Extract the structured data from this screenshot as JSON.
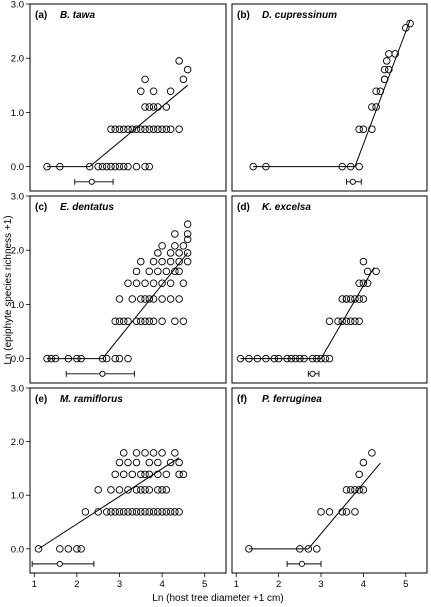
{
  "figure": {
    "ylabel": "Ln (epiphyte species richness +1)",
    "xlabel": "Ln (host tree diameter +1 cm)"
  },
  "chart_data": [
    {
      "type": "scatter",
      "tag": "(a)",
      "species": "B. tawa",
      "xlim": [
        0.9,
        5.5
      ],
      "ylim": [
        -0.45,
        3.0
      ],
      "y_ticks": [
        "0.0",
        "1.0",
        "2.0",
        "3.0"
      ],
      "x_ticks": [],
      "points": [
        [
          1.3,
          0
        ],
        [
          1.6,
          0
        ],
        [
          2.3,
          0
        ],
        [
          2.5,
          0
        ],
        [
          2.6,
          0
        ],
        [
          2.7,
          0
        ],
        [
          2.8,
          0
        ],
        [
          2.9,
          0
        ],
        [
          3.0,
          0
        ],
        [
          3.1,
          0
        ],
        [
          3.2,
          0
        ],
        [
          3.4,
          0
        ],
        [
          3.6,
          0
        ],
        [
          3.7,
          0
        ],
        [
          2.8,
          0.69
        ],
        [
          2.9,
          0.69
        ],
        [
          3.0,
          0.69
        ],
        [
          3.1,
          0.69
        ],
        [
          3.2,
          0.69
        ],
        [
          3.3,
          0.69
        ],
        [
          3.4,
          0.69
        ],
        [
          3.5,
          0.69
        ],
        [
          3.6,
          0.69
        ],
        [
          3.7,
          0.69
        ],
        [
          3.8,
          0.69
        ],
        [
          3.9,
          0.69
        ],
        [
          4.0,
          0.69
        ],
        [
          4.1,
          0.69
        ],
        [
          4.2,
          0.69
        ],
        [
          4.4,
          0.69
        ],
        [
          3.6,
          1.1
        ],
        [
          3.7,
          1.1
        ],
        [
          3.8,
          1.1
        ],
        [
          3.9,
          1.1
        ],
        [
          4.1,
          1.1
        ],
        [
          3.5,
          1.39
        ],
        [
          3.8,
          1.39
        ],
        [
          4.2,
          1.39
        ],
        [
          3.6,
          1.61
        ],
        [
          4.5,
          1.61
        ],
        [
          4.6,
          1.79
        ],
        [
          4.4,
          1.95
        ]
      ],
      "fit": [
        [
          2.3,
          0
        ],
        [
          4.6,
          1.5
        ]
      ],
      "breakpoint": {
        "x": 2.35,
        "lo": 1.95,
        "hi": 2.85
      }
    },
    {
      "type": "scatter",
      "tag": "(b)",
      "species": "D. cupressinum",
      "xlim": [
        0.9,
        5.5
      ],
      "ylim": [
        -0.45,
        3.0
      ],
      "y_ticks": [],
      "x_ticks": [],
      "points": [
        [
          1.4,
          0
        ],
        [
          1.7,
          0
        ],
        [
          3.5,
          0
        ],
        [
          3.7,
          0
        ],
        [
          3.9,
          0
        ],
        [
          3.9,
          0.69
        ],
        [
          4.0,
          0.69
        ],
        [
          4.2,
          0.69
        ],
        [
          4.2,
          1.1
        ],
        [
          4.3,
          1.1
        ],
        [
          4.3,
          1.39
        ],
        [
          4.4,
          1.39
        ],
        [
          4.5,
          1.61
        ],
        [
          4.5,
          1.79
        ],
        [
          4.55,
          1.95
        ],
        [
          4.6,
          1.79
        ],
        [
          4.6,
          2.08
        ],
        [
          4.75,
          2.08
        ],
        [
          4.5,
          1.61
        ],
        [
          5.0,
          2.56
        ],
        [
          5.1,
          2.64
        ]
      ],
      "fit": [
        [
          3.8,
          0
        ],
        [
          5.1,
          2.7
        ]
      ],
      "breakpoint": {
        "x": 3.75,
        "lo": 3.6,
        "hi": 3.95
      }
    },
    {
      "type": "scatter",
      "tag": "(c)",
      "species": "E. dentatus",
      "xlim": [
        0.9,
        5.5
      ],
      "ylim": [
        -0.45,
        3.0
      ],
      "y_ticks": [
        "0.0",
        "1.0",
        "2.0",
        "3.0"
      ],
      "x_ticks": [],
      "points": [
        [
          1.3,
          0
        ],
        [
          1.4,
          0
        ],
        [
          1.5,
          0
        ],
        [
          1.8,
          0
        ],
        [
          2.0,
          0
        ],
        [
          2.1,
          0
        ],
        [
          2.6,
          0
        ],
        [
          2.7,
          0
        ],
        [
          2.9,
          0
        ],
        [
          3.0,
          0
        ],
        [
          3.2,
          0
        ],
        [
          2.9,
          0.69
        ],
        [
          3.0,
          0.69
        ],
        [
          3.1,
          0.69
        ],
        [
          3.2,
          0.69
        ],
        [
          3.4,
          0.69
        ],
        [
          3.5,
          0.69
        ],
        [
          3.6,
          0.69
        ],
        [
          3.7,
          0.69
        ],
        [
          3.8,
          0.69
        ],
        [
          4.0,
          0.69
        ],
        [
          4.3,
          0.69
        ],
        [
          4.5,
          0.69
        ],
        [
          3.0,
          1.1
        ],
        [
          3.3,
          1.1
        ],
        [
          3.5,
          1.1
        ],
        [
          3.6,
          1.1
        ],
        [
          3.7,
          1.1
        ],
        [
          3.8,
          1.1
        ],
        [
          4.0,
          1.1
        ],
        [
          4.2,
          1.1
        ],
        [
          4.4,
          1.1
        ],
        [
          3.2,
          1.39
        ],
        [
          3.4,
          1.39
        ],
        [
          3.6,
          1.39
        ],
        [
          3.8,
          1.39
        ],
        [
          4.0,
          1.39
        ],
        [
          4.2,
          1.39
        ],
        [
          4.5,
          1.39
        ],
        [
          3.4,
          1.61
        ],
        [
          3.7,
          1.61
        ],
        [
          3.9,
          1.61
        ],
        [
          4.1,
          1.61
        ],
        [
          4.3,
          1.61
        ],
        [
          4.4,
          1.61
        ],
        [
          3.5,
          1.79
        ],
        [
          3.8,
          1.79
        ],
        [
          4.0,
          1.79
        ],
        [
          4.2,
          1.79
        ],
        [
          4.4,
          1.79
        ],
        [
          4.6,
          1.79
        ],
        [
          3.9,
          1.95
        ],
        [
          4.2,
          1.95
        ],
        [
          4.4,
          1.95
        ],
        [
          4.6,
          1.95
        ],
        [
          4.0,
          2.08
        ],
        [
          4.3,
          2.08
        ],
        [
          4.5,
          2.08
        ],
        [
          4.6,
          2.2
        ],
        [
          4.3,
          2.3
        ],
        [
          4.6,
          2.3
        ],
        [
          4.6,
          2.48
        ]
      ],
      "fit": [
        [
          2.6,
          0
        ],
        [
          4.6,
          1.95
        ]
      ],
      "breakpoint": {
        "x": 2.6,
        "lo": 1.75,
        "hi": 3.35
      }
    },
    {
      "type": "scatter",
      "tag": "(d)",
      "species": "K. excelsa",
      "xlim": [
        0.9,
        5.5
      ],
      "ylim": [
        -0.45,
        3.0
      ],
      "y_ticks": [],
      "x_ticks": [],
      "points": [
        [
          1.1,
          0
        ],
        [
          1.3,
          0
        ],
        [
          1.5,
          0
        ],
        [
          1.7,
          0
        ],
        [
          1.9,
          0
        ],
        [
          2.0,
          0
        ],
        [
          2.2,
          0
        ],
        [
          2.4,
          0
        ],
        [
          2.5,
          0
        ],
        [
          2.6,
          0
        ],
        [
          2.8,
          0
        ],
        [
          2.9,
          0
        ],
        [
          3.0,
          0
        ],
        [
          3.1,
          0
        ],
        [
          3.2,
          0
        ],
        [
          2.3,
          0
        ],
        [
          3.2,
          0.69
        ],
        [
          3.4,
          0.69
        ],
        [
          3.5,
          0.69
        ],
        [
          3.6,
          0.69
        ],
        [
          3.7,
          0.69
        ],
        [
          3.8,
          0.69
        ],
        [
          3.9,
          0.69
        ],
        [
          3.5,
          1.1
        ],
        [
          3.6,
          1.1
        ],
        [
          3.7,
          1.1
        ],
        [
          3.8,
          1.1
        ],
        [
          3.9,
          1.1
        ],
        [
          4.0,
          1.1
        ],
        [
          3.6,
          1.1
        ],
        [
          3.9,
          1.39
        ],
        [
          4.0,
          1.39
        ],
        [
          4.1,
          1.39
        ],
        [
          4.1,
          1.61
        ],
        [
          4.3,
          1.61
        ],
        [
          4.0,
          1.79
        ]
      ],
      "fit": [
        [
          3.0,
          0
        ],
        [
          4.25,
          1.68
        ]
      ],
      "breakpoint": {
        "x": 2.8,
        "lo": 2.7,
        "hi": 2.95
      }
    },
    {
      "type": "scatter",
      "tag": "(e)",
      "species": "M. ramiflorus",
      "xlim": [
        0.9,
        5.5
      ],
      "ylim": [
        -0.45,
        3.0
      ],
      "y_ticks": [
        "0.0",
        "1.0",
        "2.0",
        "3.0"
      ],
      "x_ticks": [
        "1",
        "2",
        "3",
        "4",
        "5"
      ],
      "points": [
        [
          1.1,
          0
        ],
        [
          1.6,
          0
        ],
        [
          1.8,
          0
        ],
        [
          2.0,
          0
        ],
        [
          2.1,
          0
        ],
        [
          2.2,
          0.69
        ],
        [
          2.5,
          0.69
        ],
        [
          2.7,
          0.69
        ],
        [
          2.8,
          0.69
        ],
        [
          2.9,
          0.69
        ],
        [
          3.0,
          0.69
        ],
        [
          3.1,
          0.69
        ],
        [
          3.2,
          0.69
        ],
        [
          3.3,
          0.69
        ],
        [
          3.4,
          0.69
        ],
        [
          3.5,
          0.69
        ],
        [
          3.6,
          0.69
        ],
        [
          3.7,
          0.69
        ],
        [
          3.8,
          0.69
        ],
        [
          3.9,
          0.69
        ],
        [
          4.0,
          0.69
        ],
        [
          4.1,
          0.69
        ],
        [
          4.2,
          0.69
        ],
        [
          4.3,
          0.69
        ],
        [
          4.4,
          0.69
        ],
        [
          2.5,
          1.1
        ],
        [
          2.8,
          1.1
        ],
        [
          3.0,
          1.1
        ],
        [
          3.2,
          1.1
        ],
        [
          3.4,
          1.1
        ],
        [
          3.5,
          1.1
        ],
        [
          3.6,
          1.1
        ],
        [
          3.7,
          1.1
        ],
        [
          3.9,
          1.1
        ],
        [
          4.0,
          1.1
        ],
        [
          4.1,
          1.1
        ],
        [
          2.9,
          1.39
        ],
        [
          3.1,
          1.39
        ],
        [
          3.3,
          1.39
        ],
        [
          3.5,
          1.39
        ],
        [
          3.6,
          1.39
        ],
        [
          3.7,
          1.39
        ],
        [
          3.9,
          1.39
        ],
        [
          4.1,
          1.39
        ],
        [
          4.4,
          1.39
        ],
        [
          4.5,
          1.39
        ],
        [
          3.0,
          1.61
        ],
        [
          3.2,
          1.61
        ],
        [
          3.4,
          1.61
        ],
        [
          3.7,
          1.61
        ],
        [
          3.9,
          1.61
        ],
        [
          4.2,
          1.61
        ],
        [
          4.4,
          1.61
        ],
        [
          3.1,
          1.79
        ],
        [
          3.4,
          1.79
        ],
        [
          3.6,
          1.79
        ],
        [
          3.8,
          1.79
        ],
        [
          4.0,
          1.79
        ],
        [
          4.3,
          1.79
        ]
      ],
      "fit": [
        [
          1.1,
          0
        ],
        [
          4.4,
          1.7
        ]
      ],
      "breakpoint": {
        "x": 1.6,
        "lo": 0.95,
        "hi": 2.4
      }
    },
    {
      "type": "scatter",
      "tag": "(f)",
      "species": "P. ferruginea",
      "xlim": [
        0.9,
        5.5
      ],
      "ylim": [
        -0.45,
        3.0
      ],
      "y_ticks": [],
      "x_ticks": [
        "1",
        "2",
        "3",
        "4",
        "5"
      ],
      "points": [
        [
          1.3,
          0
        ],
        [
          2.5,
          0
        ],
        [
          2.7,
          0
        ],
        [
          2.9,
          0
        ],
        [
          3.0,
          0.69
        ],
        [
          3.2,
          0.69
        ],
        [
          3.5,
          0.69
        ],
        [
          3.6,
          0.69
        ],
        [
          3.8,
          0.69
        ],
        [
          3.6,
          1.1
        ],
        [
          3.7,
          1.1
        ],
        [
          3.8,
          1.1
        ],
        [
          3.9,
          1.1
        ],
        [
          3.9,
          1.39
        ],
        [
          4.0,
          1.61
        ],
        [
          4.2,
          1.79
        ],
        [
          4.0,
          1.1
        ]
      ],
      "fit": [
        [
          2.7,
          0
        ],
        [
          4.4,
          1.6
        ]
      ],
      "breakpoint": {
        "x": 2.55,
        "lo": 2.2,
        "hi": 3.0
      }
    }
  ]
}
